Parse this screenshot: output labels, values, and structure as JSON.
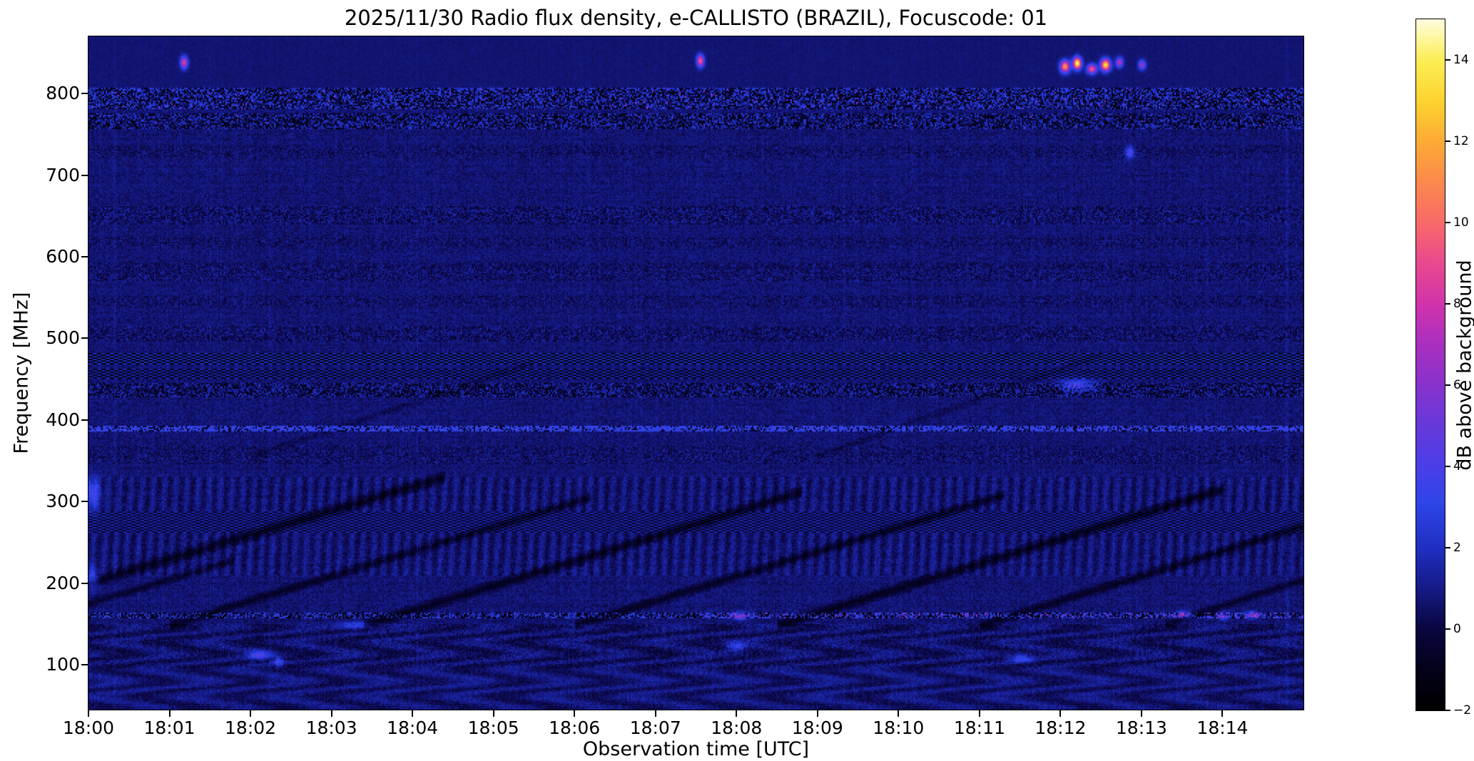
{
  "chart_data": {
    "type": "heatmap",
    "title": "2025/11/30  Radio flux density, e-CALLISTO (BRAZIL), Focuscode: 01",
    "xlabel": "Observation time [UTC]",
    "ylabel": "Frequency [MHz]",
    "x_ticks": [
      "18:00",
      "18:01",
      "18:02",
      "18:03",
      "18:04",
      "18:05",
      "18:06",
      "18:07",
      "18:08",
      "18:09",
      "18:10",
      "18:11",
      "18:12",
      "18:13",
      "18:14"
    ],
    "x_range_minutes": [
      0,
      15
    ],
    "y_ticks": [
      100,
      200,
      300,
      400,
      500,
      600,
      700,
      800
    ],
    "y_range_mhz": [
      45,
      870
    ],
    "grid": false,
    "legend": "none",
    "colorbar": {
      "label": "dB above background",
      "ticks": [
        -2,
        0,
        2,
        4,
        6,
        8,
        10,
        12,
        14
      ],
      "range": [
        -2,
        15
      ],
      "position": "right",
      "stops": [
        {
          "t": 0.0,
          "color": "#000000"
        },
        {
          "t": 0.06,
          "color": "#03021a"
        },
        {
          "t": 0.118,
          "color": "#0a0640"
        },
        {
          "t": 0.176,
          "color": "#151a85"
        },
        {
          "t": 0.235,
          "color": "#1f2fc0"
        },
        {
          "t": 0.3,
          "color": "#2e45e8"
        },
        {
          "t": 0.353,
          "color": "#4a3ee8"
        },
        {
          "t": 0.42,
          "color": "#6a38d8"
        },
        {
          "t": 0.471,
          "color": "#8832cc"
        },
        {
          "t": 0.53,
          "color": "#aa2fc0"
        },
        {
          "t": 0.588,
          "color": "#d133ab"
        },
        {
          "t": 0.65,
          "color": "#ea4a8c"
        },
        {
          "t": 0.706,
          "color": "#f86a68"
        },
        {
          "t": 0.77,
          "color": "#fb8c4a"
        },
        {
          "t": 0.824,
          "color": "#fcab35"
        },
        {
          "t": 0.88,
          "color": "#fdd22e"
        },
        {
          "t": 0.941,
          "color": "#fcee55"
        },
        {
          "t": 1.0,
          "color": "#fffde0"
        }
      ]
    },
    "background_value_db": 0.7,
    "features": {
      "bands": [
        {
          "name": "rfi-band-780-806",
          "f_low": 780,
          "f_high": 806,
          "style": "speckle",
          "v_min": -2.0,
          "v_max": 3.2,
          "bright_chance": 0.03
        },
        {
          "name": "rfi-band-756-776",
          "f_low": 756,
          "f_high": 776,
          "style": "speckle",
          "v_min": -1.8,
          "v_max": 2.6,
          "bright_chance": 0.01
        },
        {
          "name": "band-728",
          "f_low": 722,
          "f_high": 736,
          "style": "mottle",
          "amp": 0.5
        },
        {
          "name": "band-650",
          "f_low": 640,
          "f_high": 662,
          "style": "mottle",
          "amp": 0.9
        },
        {
          "name": "band-618",
          "f_low": 612,
          "f_high": 624,
          "style": "mottle",
          "amp": 0.5
        },
        {
          "name": "band-580",
          "f_low": 570,
          "f_high": 592,
          "style": "mottle",
          "amp": 0.7
        },
        {
          "name": "band-545",
          "f_low": 538,
          "f_high": 552,
          "style": "mottle",
          "amp": 0.5
        },
        {
          "name": "band-505",
          "f_low": 496,
          "f_high": 516,
          "style": "mottle",
          "amp": 0.8
        },
        {
          "name": "checker-475",
          "f_low": 468,
          "f_high": 482,
          "style": "checker",
          "v_min": -2.0,
          "v_max": 2.2
        },
        {
          "name": "checker-455",
          "f_low": 450,
          "f_high": 462,
          "style": "checker",
          "v_min": -1.4,
          "v_max": 1.8
        },
        {
          "name": "speckle-437",
          "f_low": 428,
          "f_high": 446,
          "style": "speckle",
          "v_min": -1.5,
          "v_max": 2.2,
          "bright_chance": 0.0
        },
        {
          "name": "band-356",
          "f_low": 345,
          "f_high": 368,
          "style": "mottle",
          "amp": 0.6
        },
        {
          "name": "vstripe-210-330",
          "f_low": 210,
          "f_high": 330,
          "style": "vstripe",
          "amp": 0.5
        },
        {
          "name": "checker-275",
          "f_low": 262,
          "f_high": 288,
          "style": "checker",
          "v_min": -0.8,
          "v_max": 1.8
        },
        {
          "name": "band-100-150",
          "f_low": 96,
          "f_high": 150,
          "style": "mottle",
          "amp": 0.45
        },
        {
          "name": "wave-45-150",
          "f_low": 45,
          "f_high": 150,
          "style": "wave",
          "amp": 0.5
        }
      ],
      "lines": [
        {
          "name": "bright-line-390",
          "f": 390,
          "width_mhz": 7,
          "style": "bright-gap",
          "v_bright": 2.8,
          "gap_chance": 0.3
        },
        {
          "name": "dash-line-160",
          "f": 160,
          "width_mhz": 8,
          "style": "dark-bright-dash"
        },
        {
          "name": "edge-line-806",
          "f": 806,
          "width_mhz": 3,
          "style": "bright-gap",
          "v_bright": 2.0,
          "gap_chance": 0.5
        }
      ],
      "streaks": [
        {
          "t0": -0.5,
          "f0": 185,
          "t1": 4.4,
          "f1": 330,
          "w": 10,
          "dv": -1.6
        },
        {
          "t0": -0.5,
          "f0": 160,
          "t1": 1.8,
          "f1": 228,
          "w": 7,
          "dv": -1.2
        },
        {
          "t0": 1.0,
          "f0": 148,
          "t1": 6.2,
          "f1": 305,
          "w": 8,
          "dv": -1.4
        },
        {
          "t0": 3.4,
          "f0": 148,
          "t1": 8.8,
          "f1": 312,
          "w": 9,
          "dv": -1.6
        },
        {
          "t0": 6.0,
          "f0": 148,
          "t1": 11.3,
          "f1": 308,
          "w": 8,
          "dv": -1.5
        },
        {
          "t0": 8.5,
          "f0": 148,
          "t1": 14.0,
          "f1": 315,
          "w": 9,
          "dv": -1.7
        },
        {
          "t0": 11.0,
          "f0": 148,
          "t1": 15.5,
          "f1": 285,
          "w": 8,
          "dv": -1.5
        },
        {
          "t0": 13.3,
          "f0": 150,
          "t1": 15.5,
          "f1": 220,
          "w": 7,
          "dv": -1.3
        },
        {
          "t0": 2.0,
          "f0": 355,
          "t1": 5.5,
          "f1": 470,
          "w": 6,
          "dv": -0.5
        },
        {
          "t0": 9.0,
          "f0": 355,
          "t1": 12.5,
          "f1": 480,
          "w": 6,
          "dv": -0.5
        }
      ],
      "spots": [
        {
          "t": 1.18,
          "f": 838,
          "v": 8,
          "r_t": 0.03,
          "r_f": 5
        },
        {
          "t": 7.55,
          "f": 840,
          "v": 9,
          "r_t": 0.03,
          "r_f": 5
        },
        {
          "t": 12.05,
          "f": 833,
          "v": 11,
          "r_t": 0.04,
          "r_f": 5
        },
        {
          "t": 12.2,
          "f": 837,
          "v": 14,
          "r_t": 0.035,
          "r_f": 5
        },
        {
          "t": 12.38,
          "f": 830,
          "v": 9,
          "r_t": 0.04,
          "r_f": 4
        },
        {
          "t": 12.55,
          "f": 835,
          "v": 13,
          "r_t": 0.04,
          "r_f": 5
        },
        {
          "t": 12.72,
          "f": 838,
          "v": 7,
          "r_t": 0.03,
          "r_f": 4
        },
        {
          "t": 13.0,
          "f": 835,
          "v": 6,
          "r_t": 0.03,
          "r_f": 4
        },
        {
          "t": 12.85,
          "f": 728,
          "v": 3.5,
          "r_t": 0.04,
          "r_f": 5
        },
        {
          "t": 12.2,
          "f": 443,
          "v": 3.0,
          "r_t": 0.15,
          "r_f": 5
        },
        {
          "t": 0.05,
          "f": 310,
          "v": 3.2,
          "r_t": 0.06,
          "r_f": 14
        },
        {
          "t": 0.05,
          "f": 205,
          "v": 2.6,
          "r_t": 0.05,
          "r_f": 9
        },
        {
          "t": 2.1,
          "f": 112,
          "v": 3.2,
          "r_t": 0.09,
          "r_f": 4
        },
        {
          "t": 2.35,
          "f": 104,
          "v": 2.8,
          "r_t": 0.05,
          "r_f": 4
        },
        {
          "t": 3.3,
          "f": 148,
          "v": 2.8,
          "r_t": 0.15,
          "r_f": 3
        },
        {
          "t": 8.05,
          "f": 160,
          "v": 5,
          "r_t": 0.07,
          "r_f": 3
        },
        {
          "t": 13.5,
          "f": 161,
          "v": 4.5,
          "r_t": 0.06,
          "r_f": 3
        },
        {
          "t": 14.0,
          "f": 160,
          "v": 4.0,
          "r_t": 0.05,
          "r_f": 3
        },
        {
          "t": 14.35,
          "f": 161,
          "v": 4.5,
          "r_t": 0.05,
          "r_f": 3
        },
        {
          "t": 11.5,
          "f": 108,
          "v": 2.8,
          "r_t": 0.1,
          "r_f": 4
        },
        {
          "t": 8.0,
          "f": 122,
          "v": 2.5,
          "r_t": 0.08,
          "r_f": 4
        }
      ]
    }
  }
}
